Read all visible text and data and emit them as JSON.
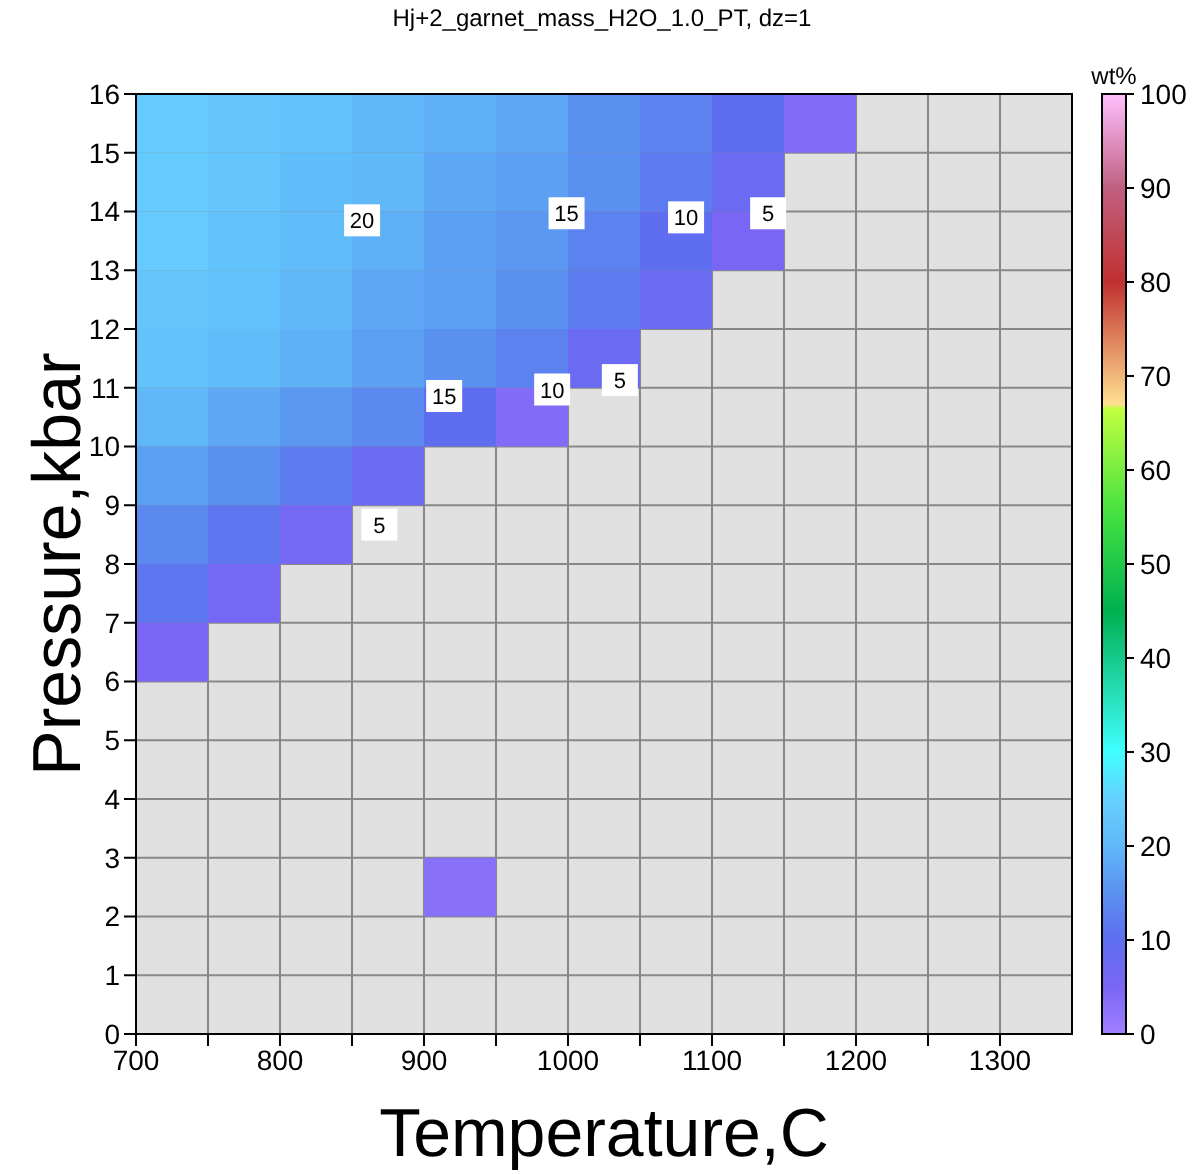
{
  "chart_data": {
    "type": "scatter",
    "title": "Hj+2_garnet_mass_H2O_1.0_PT, dz=1",
    "xlabel": "Temperature,C",
    "ylabel": "Pressure,kbar",
    "clabel": "wt%",
    "xlim": [
      700,
      1350
    ],
    "ylim": [
      0,
      16
    ],
    "xticks": [
      700,
      {
        "value": 750,
        "label": null
      },
      800,
      {
        "value": 850,
        "label": null
      },
      900,
      {
        "value": 950,
        "label": null
      },
      1000,
      {
        "value": 1050,
        "label": null
      },
      1100,
      {
        "value": 1150,
        "label": null
      },
      1200,
      {
        "value": 1250,
        "label": null
      },
      1300
    ],
    "yticks": [
      0,
      1,
      2,
      3,
      4,
      5,
      6,
      7,
      8,
      9,
      10,
      11,
      12,
      13,
      14,
      15,
      16
    ],
    "clim": [
      0,
      100
    ],
    "cticks": [
      0,
      10,
      20,
      30,
      40,
      50,
      60,
      70,
      80,
      90,
      100
    ],
    "grid": true,
    "marker": "square",
    "x": [
      725,
      775,
      825,
      875,
      925,
      975,
      1025,
      1075,
      1125,
      1175,
      725,
      775,
      825,
      875,
      925,
      975,
      1025,
      1075,
      1125,
      725,
      775,
      825,
      875,
      925,
      975,
      1025,
      1075,
      1125,
      725,
      775,
      825,
      875,
      925,
      975,
      1025,
      1075,
      725,
      775,
      825,
      875,
      925,
      975,
      1025,
      725,
      775,
      825,
      875,
      925,
      975,
      725,
      775,
      825,
      875,
      725,
      775,
      825,
      725,
      775,
      725,
      925
    ],
    "values": [
      15.5,
      15.5,
      15.5,
      15.5,
      15.5,
      15.5,
      15.5,
      15.5,
      15.5,
      15.5,
      14.5,
      14.5,
      14.5,
      14.5,
      14.5,
      14.5,
      14.5,
      14.5,
      14.5,
      13.5,
      13.5,
      13.5,
      13.5,
      13.5,
      13.5,
      13.5,
      13.5,
      13.5,
      12.5,
      12.5,
      12.5,
      12.5,
      12.5,
      12.5,
      12.5,
      12.5,
      11.5,
      11.5,
      11.5,
      11.5,
      11.5,
      11.5,
      11.5,
      10.5,
      10.5,
      10.5,
      10.5,
      10.5,
      10.5,
      9.5,
      9.5,
      9.5,
      9.5,
      8.5,
      8.5,
      8.5,
      7.5,
      7.5,
      6.5,
      2.5
    ],
    "cvalues": [
      24,
      23,
      22,
      20,
      19,
      18,
      15,
      13,
      10,
      4,
      24,
      23,
      21,
      20,
      18,
      17,
      15,
      12,
      8,
      24,
      22,
      21,
      19,
      17,
      16,
      13,
      10,
      5,
      23,
      22,
      20,
      18,
      17,
      15,
      12,
      8,
      22,
      21,
      19,
      17,
      15,
      13,
      8,
      20,
      18,
      16,
      14,
      10,
      4,
      17,
      15,
      12,
      8,
      14,
      11,
      6,
      11,
      6,
      5,
      3
    ],
    "annotations": [
      {
        "text": "20",
        "x": 857,
        "y": 13.85
      },
      {
        "text": "15",
        "x": 999,
        "y": 13.97
      },
      {
        "text": "10",
        "x": 1082,
        "y": 13.9
      },
      {
        "text": "5",
        "x": 1139,
        "y": 13.97
      },
      {
        "text": "15",
        "x": 914,
        "y": 10.86
      },
      {
        "text": "10",
        "x": 989,
        "y": 10.97
      },
      {
        "text": "5",
        "x": 1036,
        "y": 11.13
      },
      {
        "text": "5",
        "x": 869,
        "y": 8.67
      }
    ]
  }
}
